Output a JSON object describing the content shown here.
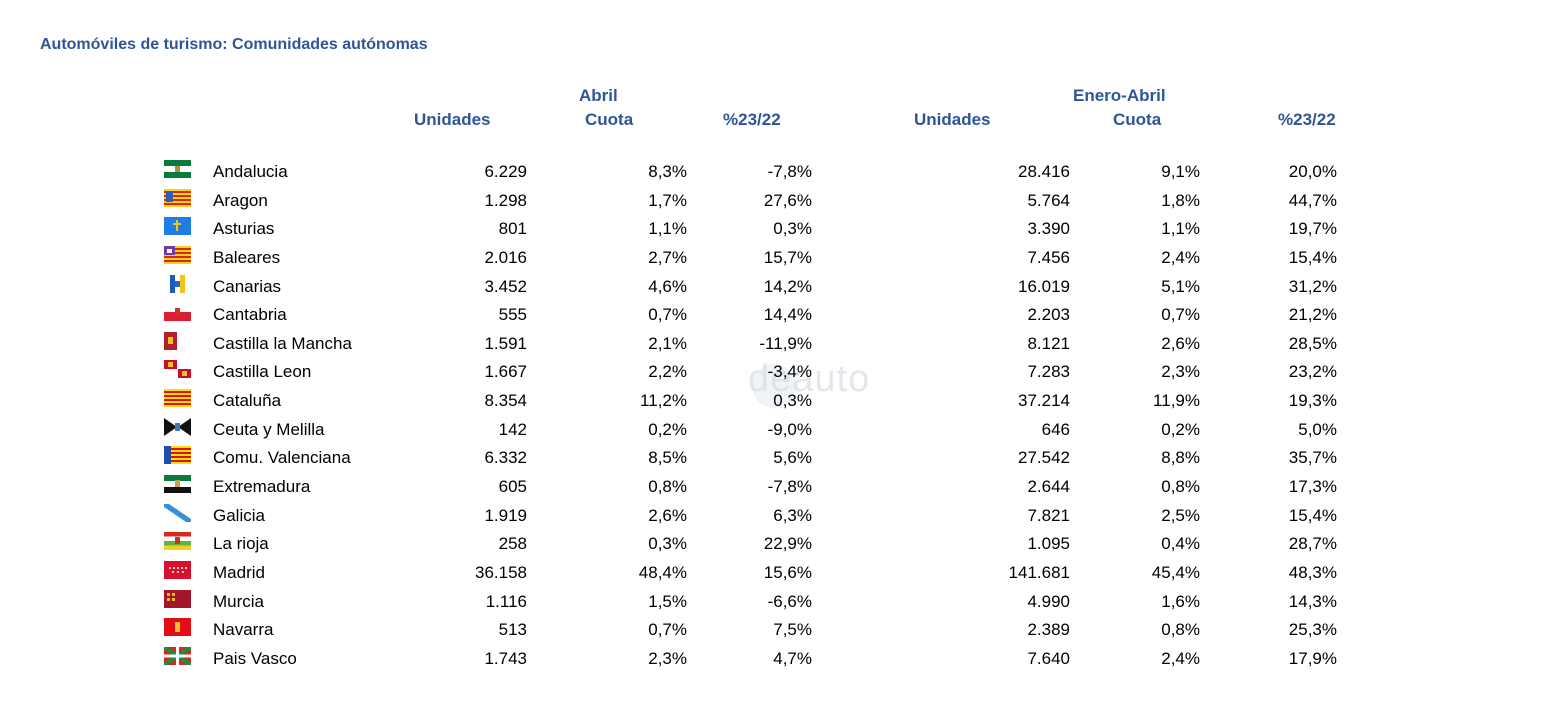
{
  "title": "Automóviles de turismo: Comunidades autónomas",
  "headers": {
    "group_april": "Abril",
    "group_ytd": "Enero-Abril",
    "units": "Unidades",
    "share": "Cuota",
    "change": "%23/22"
  },
  "watermark": "deauto",
  "rows": [
    {
      "name": "Andalucia",
      "flag": "andalucia-flag-icon",
      "u1": "6.229",
      "s1": "8,3%",
      "p1": "-7,8%",
      "u2": "28.416",
      "s2": "9,1%",
      "p2": "20,0%"
    },
    {
      "name": "Aragon",
      "flag": "aragon-flag-icon",
      "u1": "1.298",
      "s1": "1,7%",
      "p1": "27,6%",
      "u2": "5.764",
      "s2": "1,8%",
      "p2": "44,7%"
    },
    {
      "name": "Asturias",
      "flag": "asturias-flag-icon",
      "u1": "801",
      "s1": "1,1%",
      "p1": "0,3%",
      "u2": "3.390",
      "s2": "1,1%",
      "p2": "19,7%"
    },
    {
      "name": "Baleares",
      "flag": "baleares-flag-icon",
      "u1": "2.016",
      "s1": "2,7%",
      "p1": "15,7%",
      "u2": "7.456",
      "s2": "2,4%",
      "p2": "15,4%"
    },
    {
      "name": "Canarias",
      "flag": "canarias-flag-icon",
      "u1": "3.452",
      "s1": "4,6%",
      "p1": "14,2%",
      "u2": "16.019",
      "s2": "5,1%",
      "p2": "31,2%"
    },
    {
      "name": "Cantabria",
      "flag": "cantabria-flag-icon",
      "u1": "555",
      "s1": "0,7%",
      "p1": "14,4%",
      "u2": "2.203",
      "s2": "0,7%",
      "p2": "21,2%"
    },
    {
      "name": "Castilla la Mancha",
      "flag": "castilla-la-mancha-flag-icon",
      "u1": "1.591",
      "s1": "2,1%",
      "p1": "-11,9%",
      "u2": "8.121",
      "s2": "2,6%",
      "p2": "28,5%"
    },
    {
      "name": "Castilla Leon",
      "flag": "castilla-leon-flag-icon",
      "u1": "1.667",
      "s1": "2,2%",
      "p1": "-3,4%",
      "u2": "7.283",
      "s2": "2,3%",
      "p2": "23,2%"
    },
    {
      "name": "Cataluña",
      "flag": "cataluna-flag-icon",
      "u1": "8.354",
      "s1": "11,2%",
      "p1": "0,3%",
      "u2": "37.214",
      "s2": "11,9%",
      "p2": "19,3%"
    },
    {
      "name": "Ceuta y Melilla",
      "flag": "ceuta-melilla-flag-icon",
      "u1": "142",
      "s1": "0,2%",
      "p1": "-9,0%",
      "u2": "646",
      "s2": "0,2%",
      "p2": "5,0%"
    },
    {
      "name": "Comu. Valenciana",
      "flag": "valenciana-flag-icon",
      "u1": "6.332",
      "s1": "8,5%",
      "p1": "5,6%",
      "u2": "27.542",
      "s2": "8,8%",
      "p2": "35,7%"
    },
    {
      "name": "Extremadura",
      "flag": "extremadura-flag-icon",
      "u1": "605",
      "s1": "0,8%",
      "p1": "-7,8%",
      "u2": "2.644",
      "s2": "0,8%",
      "p2": "17,3%"
    },
    {
      "name": "Galicia",
      "flag": "galicia-flag-icon",
      "u1": "1.919",
      "s1": "2,6%",
      "p1": "6,3%",
      "u2": "7.821",
      "s2": "2,5%",
      "p2": "15,4%"
    },
    {
      "name": "La rioja",
      "flag": "la-rioja-flag-icon",
      "u1": "258",
      "s1": "0,3%",
      "p1": "22,9%",
      "u2": "1.095",
      "s2": "0,4%",
      "p2": "28,7%"
    },
    {
      "name": "Madrid",
      "flag": "madrid-flag-icon",
      "u1": "36.158",
      "s1": "48,4%",
      "p1": "15,6%",
      "u2": "141.681",
      "s2": "45,4%",
      "p2": "48,3%"
    },
    {
      "name": "Murcia",
      "flag": "murcia-flag-icon",
      "u1": "1.116",
      "s1": "1,5%",
      "p1": "-6,6%",
      "u2": "4.990",
      "s2": "1,6%",
      "p2": "14,3%"
    },
    {
      "name": "Navarra",
      "flag": "navarra-flag-icon",
      "u1": "513",
      "s1": "0,7%",
      "p1": "7,5%",
      "u2": "2.389",
      "s2": "0,8%",
      "p2": "25,3%"
    },
    {
      "name": "Pais Vasco",
      "flag": "pais-vasco-flag-icon",
      "u1": "1.743",
      "s1": "2,3%",
      "p1": "4,7%",
      "u2": "7.640",
      "s2": "2,4%",
      "p2": "17,9%"
    }
  ]
}
